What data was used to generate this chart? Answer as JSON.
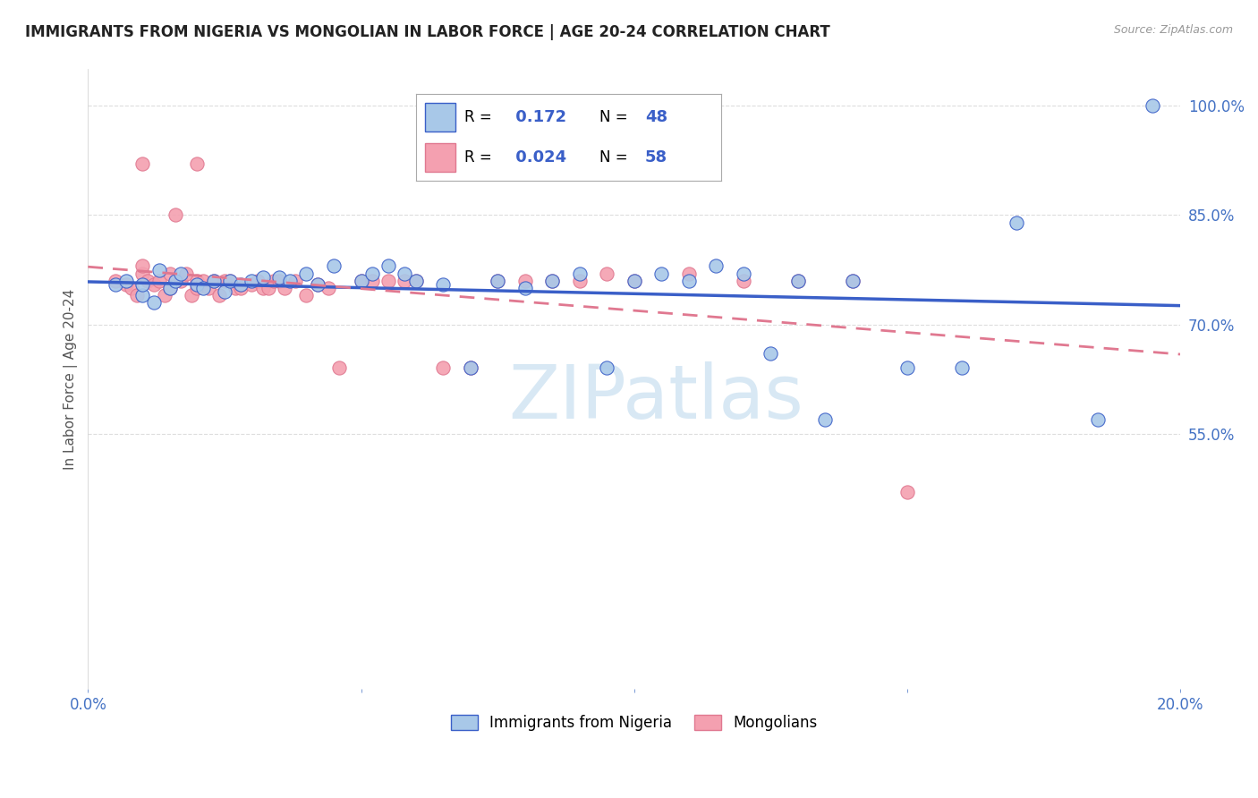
{
  "title": "IMMIGRANTS FROM NIGERIA VS MONGOLIAN IN LABOR FORCE | AGE 20-24 CORRELATION CHART",
  "source": "Source: ZipAtlas.com",
  "ylabel": "In Labor Force | Age 20-24",
  "xlim": [
    0.0,
    0.2
  ],
  "ylim": [
    0.2,
    1.05
  ],
  "ytick_vals": [
    0.55,
    0.7,
    0.85,
    1.0
  ],
  "ytick_labels": [
    "55.0%",
    "70.0%",
    "85.0%",
    "100.0%"
  ],
  "xtick_vals": [
    0.0,
    0.05,
    0.1,
    0.15,
    0.2
  ],
  "xtick_labels": [
    "0.0%",
    "",
    "",
    "",
    "20.0%"
  ],
  "nigeria_R": 0.172,
  "nigeria_N": 48,
  "mongolia_R": 0.024,
  "mongolia_N": 58,
  "nigeria_color": "#a8c8e8",
  "mongolia_color": "#f4a0b0",
  "nigeria_line_color": "#3a5fc8",
  "mongolia_line_color": "#e07890",
  "tick_color": "#4472c4",
  "grid_color": "#dddddd",
  "background_color": "#ffffff",
  "watermark_color": "#c8dff0",
  "nigeria_scatter_x": [
    0.005,
    0.007,
    0.01,
    0.01,
    0.012,
    0.013,
    0.015,
    0.016,
    0.017,
    0.02,
    0.021,
    0.023,
    0.025,
    0.026,
    0.028,
    0.03,
    0.032,
    0.035,
    0.037,
    0.04,
    0.042,
    0.045,
    0.05,
    0.052,
    0.055,
    0.058,
    0.06,
    0.065,
    0.07,
    0.075,
    0.08,
    0.085,
    0.09,
    0.095,
    0.1,
    0.105,
    0.11,
    0.115,
    0.12,
    0.125,
    0.13,
    0.135,
    0.14,
    0.15,
    0.16,
    0.17,
    0.185,
    0.195
  ],
  "nigeria_scatter_y": [
    0.755,
    0.76,
    0.74,
    0.755,
    0.73,
    0.775,
    0.75,
    0.76,
    0.77,
    0.755,
    0.75,
    0.76,
    0.745,
    0.76,
    0.755,
    0.76,
    0.765,
    0.765,
    0.76,
    0.77,
    0.755,
    0.78,
    0.76,
    0.77,
    0.78,
    0.77,
    0.76,
    0.755,
    0.64,
    0.76,
    0.75,
    0.76,
    0.77,
    0.64,
    0.76,
    0.77,
    0.76,
    0.78,
    0.77,
    0.66,
    0.76,
    0.57,
    0.76,
    0.64,
    0.64,
    0.84,
    0.57,
    1.0
  ],
  "mongolia_scatter_x": [
    0.005,
    0.007,
    0.008,
    0.009,
    0.01,
    0.01,
    0.01,
    0.011,
    0.012,
    0.013,
    0.014,
    0.015,
    0.015,
    0.016,
    0.017,
    0.018,
    0.019,
    0.02,
    0.02,
    0.02,
    0.021,
    0.022,
    0.023,
    0.024,
    0.025,
    0.026,
    0.027,
    0.028,
    0.03,
    0.031,
    0.032,
    0.033,
    0.034,
    0.035,
    0.036,
    0.038,
    0.04,
    0.042,
    0.044,
    0.046,
    0.05,
    0.052,
    0.055,
    0.058,
    0.06,
    0.065,
    0.07,
    0.075,
    0.08,
    0.085,
    0.09,
    0.095,
    0.1,
    0.11,
    0.12,
    0.13,
    0.14,
    0.15
  ],
  "mongolia_scatter_y": [
    0.76,
    0.755,
    0.75,
    0.74,
    0.77,
    0.78,
    0.92,
    0.76,
    0.755,
    0.76,
    0.74,
    0.77,
    0.75,
    0.85,
    0.76,
    0.77,
    0.74,
    0.76,
    0.75,
    0.92,
    0.76,
    0.75,
    0.76,
    0.74,
    0.76,
    0.76,
    0.75,
    0.75,
    0.755,
    0.76,
    0.75,
    0.75,
    0.76,
    0.76,
    0.75,
    0.76,
    0.74,
    0.755,
    0.75,
    0.64,
    0.76,
    0.76,
    0.76,
    0.76,
    0.76,
    0.64,
    0.64,
    0.76,
    0.76,
    0.76,
    0.76,
    0.77,
    0.76,
    0.77,
    0.76,
    0.76,
    0.76,
    0.47
  ]
}
